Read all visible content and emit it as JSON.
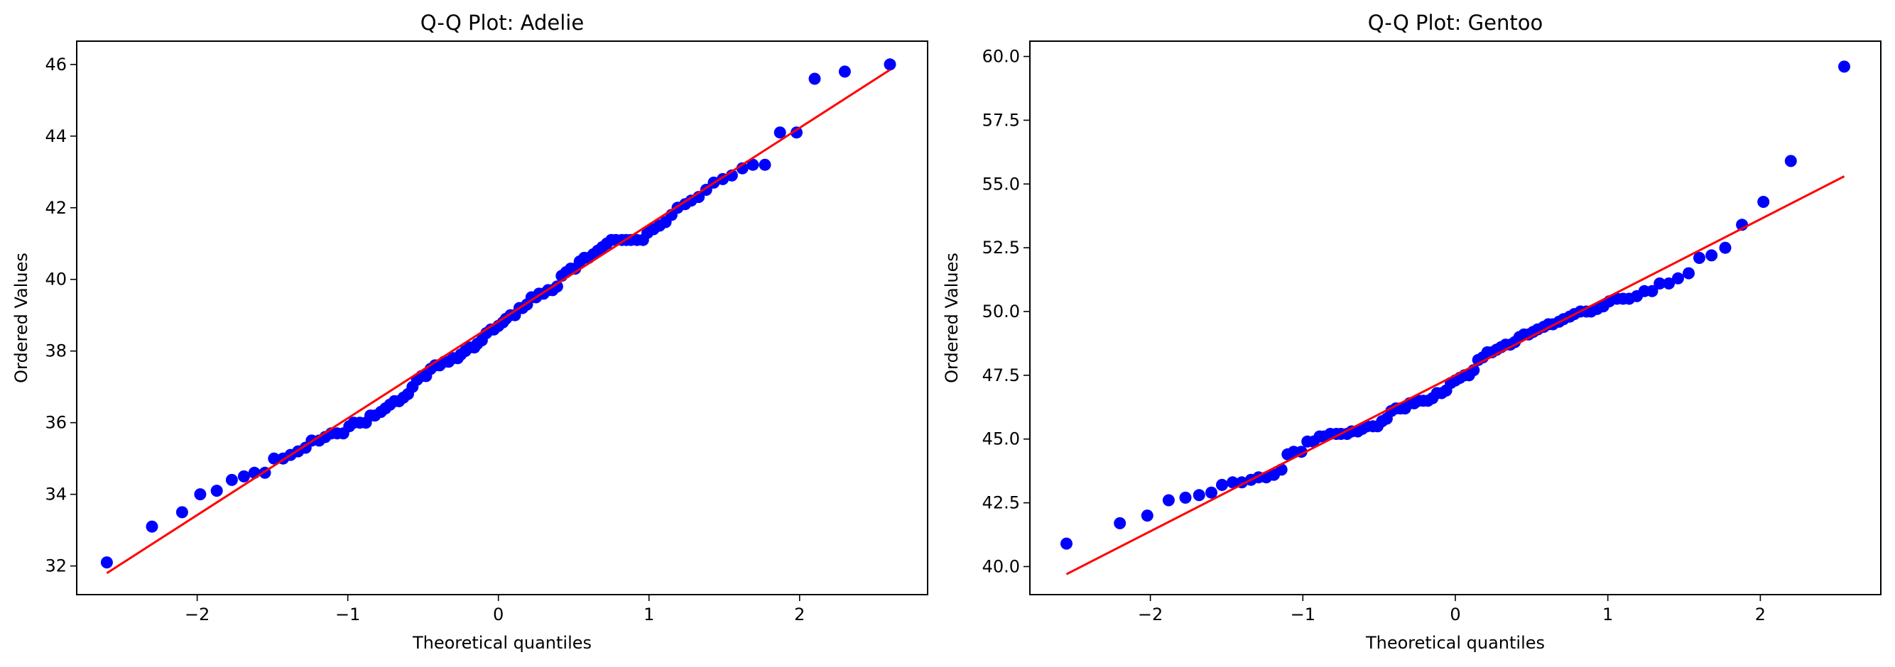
{
  "chart_data": [
    {
      "type": "scatter",
      "title": "Q-Q Plot: Adelie",
      "xlabel": "Theoretical quantiles",
      "ylabel": "Ordered Values",
      "xlim": [
        -2.8,
        2.85
      ],
      "ylim": [
        31.2,
        46.65
      ],
      "xticks": [
        -2,
        -1,
        0,
        1,
        2
      ],
      "xtick_labels": [
        "−2",
        "−1",
        "0",
        "1",
        "2"
      ],
      "yticks": [
        32,
        34,
        36,
        38,
        40,
        42,
        44,
        46
      ],
      "ytick_labels": [
        "32",
        "34",
        "36",
        "38",
        "40",
        "42",
        "44",
        "46"
      ],
      "grid": false,
      "marker_color": "#0000ff",
      "line_color": "#ff0000",
      "fit_line": {
        "x": [
          -2.6,
          2.6
        ],
        "y": [
          31.8,
          45.85
        ]
      },
      "points": [
        {
          "x": -2.6,
          "y": 32.1
        },
        {
          "x": -2.3,
          "y": 33.1
        },
        {
          "x": -2.1,
          "y": 33.5
        },
        {
          "x": -1.98,
          "y": 34.0
        },
        {
          "x": -1.87,
          "y": 34.1
        },
        {
          "x": -1.77,
          "y": 34.4
        },
        {
          "x": -1.69,
          "y": 34.5
        },
        {
          "x": -1.62,
          "y": 34.6
        },
        {
          "x": -1.55,
          "y": 34.6
        },
        {
          "x": -1.49,
          "y": 35.0
        },
        {
          "x": -1.43,
          "y": 35.0
        },
        {
          "x": -1.38,
          "y": 35.1
        },
        {
          "x": -1.33,
          "y": 35.2
        },
        {
          "x": -1.28,
          "y": 35.3
        },
        {
          "x": -1.24,
          "y": 35.5
        },
        {
          "x": -1.19,
          "y": 35.5
        },
        {
          "x": -1.15,
          "y": 35.6
        },
        {
          "x": -1.11,
          "y": 35.7
        },
        {
          "x": -1.07,
          "y": 35.7
        },
        {
          "x": -1.03,
          "y": 35.7
        },
        {
          "x": -0.99,
          "y": 35.9
        },
        {
          "x": -0.96,
          "y": 36.0
        },
        {
          "x": -0.92,
          "y": 36.0
        },
        {
          "x": -0.88,
          "y": 36.0
        },
        {
          "x": -0.85,
          "y": 36.2
        },
        {
          "x": -0.82,
          "y": 36.2
        },
        {
          "x": -0.78,
          "y": 36.3
        },
        {
          "x": -0.75,
          "y": 36.4
        },
        {
          "x": -0.72,
          "y": 36.5
        },
        {
          "x": -0.69,
          "y": 36.6
        },
        {
          "x": -0.66,
          "y": 36.6
        },
        {
          "x": -0.63,
          "y": 36.7
        },
        {
          "x": -0.6,
          "y": 36.8
        },
        {
          "x": -0.57,
          "y": 37.0
        },
        {
          "x": -0.54,
          "y": 37.2
        },
        {
          "x": -0.51,
          "y": 37.3
        },
        {
          "x": -0.48,
          "y": 37.3
        },
        {
          "x": -0.45,
          "y": 37.5
        },
        {
          "x": -0.42,
          "y": 37.6
        },
        {
          "x": -0.39,
          "y": 37.6
        },
        {
          "x": -0.36,
          "y": 37.7
        },
        {
          "x": -0.33,
          "y": 37.7
        },
        {
          "x": -0.3,
          "y": 37.8
        },
        {
          "x": -0.27,
          "y": 37.8
        },
        {
          "x": -0.25,
          "y": 37.9
        },
        {
          "x": -0.22,
          "y": 38.0
        },
        {
          "x": -0.19,
          "y": 38.1
        },
        {
          "x": -0.16,
          "y": 38.1
        },
        {
          "x": -0.14,
          "y": 38.2
        },
        {
          "x": -0.11,
          "y": 38.3
        },
        {
          "x": -0.08,
          "y": 38.5
        },
        {
          "x": -0.05,
          "y": 38.6
        },
        {
          "x": -0.03,
          "y": 38.6
        },
        {
          "x": 0.0,
          "y": 38.7
        },
        {
          "x": 0.03,
          "y": 38.8
        },
        {
          "x": 0.05,
          "y": 38.9
        },
        {
          "x": 0.08,
          "y": 39.0
        },
        {
          "x": 0.11,
          "y": 39.0
        },
        {
          "x": 0.14,
          "y": 39.2
        },
        {
          "x": 0.16,
          "y": 39.2
        },
        {
          "x": 0.19,
          "y": 39.3
        },
        {
          "x": 0.22,
          "y": 39.5
        },
        {
          "x": 0.25,
          "y": 39.5
        },
        {
          "x": 0.27,
          "y": 39.6
        },
        {
          "x": 0.3,
          "y": 39.6
        },
        {
          "x": 0.33,
          "y": 39.7
        },
        {
          "x": 0.36,
          "y": 39.7
        },
        {
          "x": 0.39,
          "y": 39.8
        },
        {
          "x": 0.42,
          "y": 40.1
        },
        {
          "x": 0.45,
          "y": 40.2
        },
        {
          "x": 0.48,
          "y": 40.3
        },
        {
          "x": 0.51,
          "y": 40.3
        },
        {
          "x": 0.54,
          "y": 40.5
        },
        {
          "x": 0.57,
          "y": 40.6
        },
        {
          "x": 0.6,
          "y": 40.6
        },
        {
          "x": 0.63,
          "y": 40.7
        },
        {
          "x": 0.66,
          "y": 40.8
        },
        {
          "x": 0.69,
          "y": 40.9
        },
        {
          "x": 0.72,
          "y": 41.0
        },
        {
          "x": 0.75,
          "y": 41.1
        },
        {
          "x": 0.78,
          "y": 41.1
        },
        {
          "x": 0.82,
          "y": 41.1
        },
        {
          "x": 0.85,
          "y": 41.1
        },
        {
          "x": 0.88,
          "y": 41.1
        },
        {
          "x": 0.92,
          "y": 41.1
        },
        {
          "x": 0.96,
          "y": 41.1
        },
        {
          "x": 0.99,
          "y": 41.3
        },
        {
          "x": 1.03,
          "y": 41.4
        },
        {
          "x": 1.07,
          "y": 41.5
        },
        {
          "x": 1.11,
          "y": 41.6
        },
        {
          "x": 1.15,
          "y": 41.8
        },
        {
          "x": 1.19,
          "y": 42.0
        },
        {
          "x": 1.24,
          "y": 42.1
        },
        {
          "x": 1.28,
          "y": 42.2
        },
        {
          "x": 1.33,
          "y": 42.3
        },
        {
          "x": 1.38,
          "y": 42.5
        },
        {
          "x": 1.43,
          "y": 42.7
        },
        {
          "x": 1.49,
          "y": 42.8
        },
        {
          "x": 1.55,
          "y": 42.9
        },
        {
          "x": 1.62,
          "y": 43.1
        },
        {
          "x": 1.69,
          "y": 43.2
        },
        {
          "x": 1.77,
          "y": 43.2
        },
        {
          "x": 1.87,
          "y": 44.1
        },
        {
          "x": 1.98,
          "y": 44.1
        },
        {
          "x": 2.1,
          "y": 45.6
        },
        {
          "x": 2.3,
          "y": 45.8
        },
        {
          "x": 2.6,
          "y": 46.0
        }
      ]
    },
    {
      "type": "scatter",
      "title": "Q-Q Plot: Gentoo",
      "xlabel": "Theoretical quantiles",
      "ylabel": "Ordered Values",
      "xlim": [
        -2.79,
        2.79
      ],
      "ylim": [
        38.9,
        60.6
      ],
      "xticks": [
        -2,
        -1,
        0,
        1,
        2
      ],
      "xtick_labels": [
        "−2",
        "−1",
        "0",
        "1",
        "2"
      ],
      "yticks": [
        40.0,
        42.5,
        45.0,
        47.5,
        50.0,
        52.5,
        55.0,
        57.5,
        60.0
      ],
      "ytick_labels": [
        "40.0",
        "42.5",
        "45.0",
        "47.5",
        "50.0",
        "52.5",
        "55.0",
        "57.5",
        "60.0"
      ],
      "grid": false,
      "marker_color": "#0000ff",
      "line_color": "#ff0000",
      "fit_line": {
        "x": [
          -2.55,
          2.55
        ],
        "y": [
          39.7,
          55.3
        ]
      },
      "points": [
        {
          "x": -2.55,
          "y": 40.9
        },
        {
          "x": -2.2,
          "y": 41.7
        },
        {
          "x": -2.02,
          "y": 42.0
        },
        {
          "x": -1.88,
          "y": 42.6
        },
        {
          "x": -1.77,
          "y": 42.7
        },
        {
          "x": -1.68,
          "y": 42.8
        },
        {
          "x": -1.6,
          "y": 42.9
        },
        {
          "x": -1.53,
          "y": 43.2
        },
        {
          "x": -1.46,
          "y": 43.3
        },
        {
          "x": -1.4,
          "y": 43.3
        },
        {
          "x": -1.34,
          "y": 43.4
        },
        {
          "x": -1.29,
          "y": 43.5
        },
        {
          "x": -1.24,
          "y": 43.5
        },
        {
          "x": -1.19,
          "y": 43.6
        },
        {
          "x": -1.14,
          "y": 43.8
        },
        {
          "x": -1.1,
          "y": 44.4
        },
        {
          "x": -1.06,
          "y": 44.5
        },
        {
          "x": -1.01,
          "y": 44.5
        },
        {
          "x": -0.97,
          "y": 44.9
        },
        {
          "x": -0.93,
          "y": 44.9
        },
        {
          "x": -0.89,
          "y": 45.1
        },
        {
          "x": -0.86,
          "y": 45.1
        },
        {
          "x": -0.82,
          "y": 45.2
        },
        {
          "x": -0.78,
          "y": 45.2
        },
        {
          "x": -0.75,
          "y": 45.2
        },
        {
          "x": -0.71,
          "y": 45.2
        },
        {
          "x": -0.68,
          "y": 45.3
        },
        {
          "x": -0.64,
          "y": 45.3
        },
        {
          "x": -0.61,
          "y": 45.4
        },
        {
          "x": -0.58,
          "y": 45.5
        },
        {
          "x": -0.54,
          "y": 45.5
        },
        {
          "x": -0.51,
          "y": 45.5
        },
        {
          "x": -0.48,
          "y": 45.7
        },
        {
          "x": -0.45,
          "y": 45.8
        },
        {
          "x": -0.42,
          "y": 46.1
        },
        {
          "x": -0.39,
          "y": 46.2
        },
        {
          "x": -0.36,
          "y": 46.2
        },
        {
          "x": -0.33,
          "y": 46.2
        },
        {
          "x": -0.3,
          "y": 46.4
        },
        {
          "x": -0.27,
          "y": 46.4
        },
        {
          "x": -0.24,
          "y": 46.5
        },
        {
          "x": -0.21,
          "y": 46.5
        },
        {
          "x": -0.18,
          "y": 46.5
        },
        {
          "x": -0.15,
          "y": 46.6
        },
        {
          "x": -0.12,
          "y": 46.8
        },
        {
          "x": -0.09,
          "y": 46.8
        },
        {
          "x": -0.06,
          "y": 46.9
        },
        {
          "x": -0.03,
          "y": 47.2
        },
        {
          "x": 0.0,
          "y": 47.3
        },
        {
          "x": 0.03,
          "y": 47.4
        },
        {
          "x": 0.06,
          "y": 47.5
        },
        {
          "x": 0.09,
          "y": 47.5
        },
        {
          "x": 0.12,
          "y": 47.7
        },
        {
          "x": 0.15,
          "y": 48.1
        },
        {
          "x": 0.18,
          "y": 48.2
        },
        {
          "x": 0.21,
          "y": 48.4
        },
        {
          "x": 0.24,
          "y": 48.4
        },
        {
          "x": 0.27,
          "y": 48.5
        },
        {
          "x": 0.3,
          "y": 48.6
        },
        {
          "x": 0.33,
          "y": 48.7
        },
        {
          "x": 0.36,
          "y": 48.7
        },
        {
          "x": 0.39,
          "y": 48.8
        },
        {
          "x": 0.42,
          "y": 49.0
        },
        {
          "x": 0.45,
          "y": 49.1
        },
        {
          "x": 0.48,
          "y": 49.1
        },
        {
          "x": 0.51,
          "y": 49.2
        },
        {
          "x": 0.54,
          "y": 49.3
        },
        {
          "x": 0.58,
          "y": 49.4
        },
        {
          "x": 0.61,
          "y": 49.5
        },
        {
          "x": 0.64,
          "y": 49.5
        },
        {
          "x": 0.68,
          "y": 49.6
        },
        {
          "x": 0.71,
          "y": 49.7
        },
        {
          "x": 0.75,
          "y": 49.8
        },
        {
          "x": 0.78,
          "y": 49.9
        },
        {
          "x": 0.82,
          "y": 50.0
        },
        {
          "x": 0.86,
          "y": 50.0
        },
        {
          "x": 0.89,
          "y": 50.0
        },
        {
          "x": 0.93,
          "y": 50.1
        },
        {
          "x": 0.97,
          "y": 50.2
        },
        {
          "x": 1.01,
          "y": 50.4
        },
        {
          "x": 1.06,
          "y": 50.5
        },
        {
          "x": 1.1,
          "y": 50.5
        },
        {
          "x": 1.14,
          "y": 50.5
        },
        {
          "x": 1.19,
          "y": 50.6
        },
        {
          "x": 1.24,
          "y": 50.8
        },
        {
          "x": 1.29,
          "y": 50.8
        },
        {
          "x": 1.34,
          "y": 51.1
        },
        {
          "x": 1.4,
          "y": 51.1
        },
        {
          "x": 1.46,
          "y": 51.3
        },
        {
          "x": 1.53,
          "y": 51.5
        },
        {
          "x": 1.6,
          "y": 52.1
        },
        {
          "x": 1.68,
          "y": 52.2
        },
        {
          "x": 1.77,
          "y": 52.5
        },
        {
          "x": 1.88,
          "y": 53.4
        },
        {
          "x": 2.02,
          "y": 54.3
        },
        {
          "x": 2.2,
          "y": 55.9
        },
        {
          "x": 2.55,
          "y": 59.6
        }
      ]
    }
  ]
}
